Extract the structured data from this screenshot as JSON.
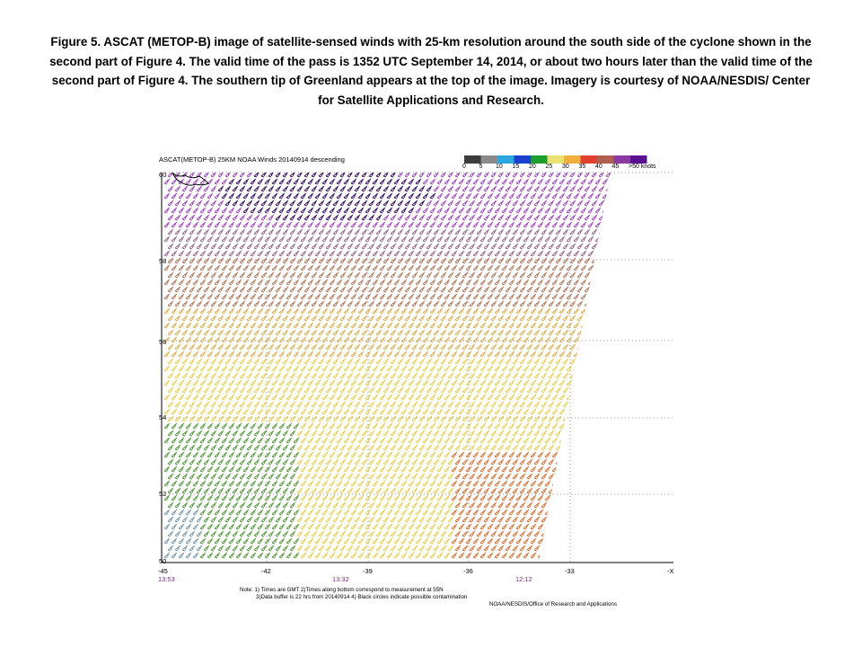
{
  "caption": "Figure 5.  ASCAT (METOP-B) image of satellite-sensed winds with 25-km resolution around the south side of the cyclone shown in the second part of Figure 4.  The valid time of the pass is 1352 UTC September 14, 2014, or about two hours later than the valid time of the second part of Figure 4.  The southern tip of Greenland appears at the top of the image.  Imagery is courtesy of NOAA/NESDIS/  Center for Satellite Applications  and Research.",
  "map": {
    "title": "ASCAT(METOP-B) 25KM NOAA Winds 20140914 descending",
    "speed_scale": {
      "labels": [
        "0",
        "5",
        "10",
        "15",
        "20",
        "25",
        "30",
        "35",
        "40",
        "45",
        ">50 knots"
      ],
      "colors": [
        "#3c3c3c",
        "#8a8a8a",
        "#2aa7e0",
        "#1a40d0",
        "#1e9e30",
        "#e8e070",
        "#f0b040",
        "#e04030",
        "#b06050",
        "#8a3aa0",
        "#5a1090"
      ]
    },
    "latitude_labels": [
      "60",
      "58",
      "56",
      "54",
      "52",
      "50"
    ],
    "longitude_labels": [
      "-45",
      "-42",
      "-39",
      "-36",
      "-33",
      "-X"
    ],
    "pass_times": [
      "13:53",
      "13:32",
      "12:12"
    ],
    "notes": [
      "Note: 1) Times are GMT  2)Times along bottom correspond to measurement at 55N",
      "3)Data buffer is 22 hrs from 20140914  4) Black circles indicate possible contamination"
    ],
    "credit": "NOAA/NESDIS/Office of Research and Applications"
  }
}
